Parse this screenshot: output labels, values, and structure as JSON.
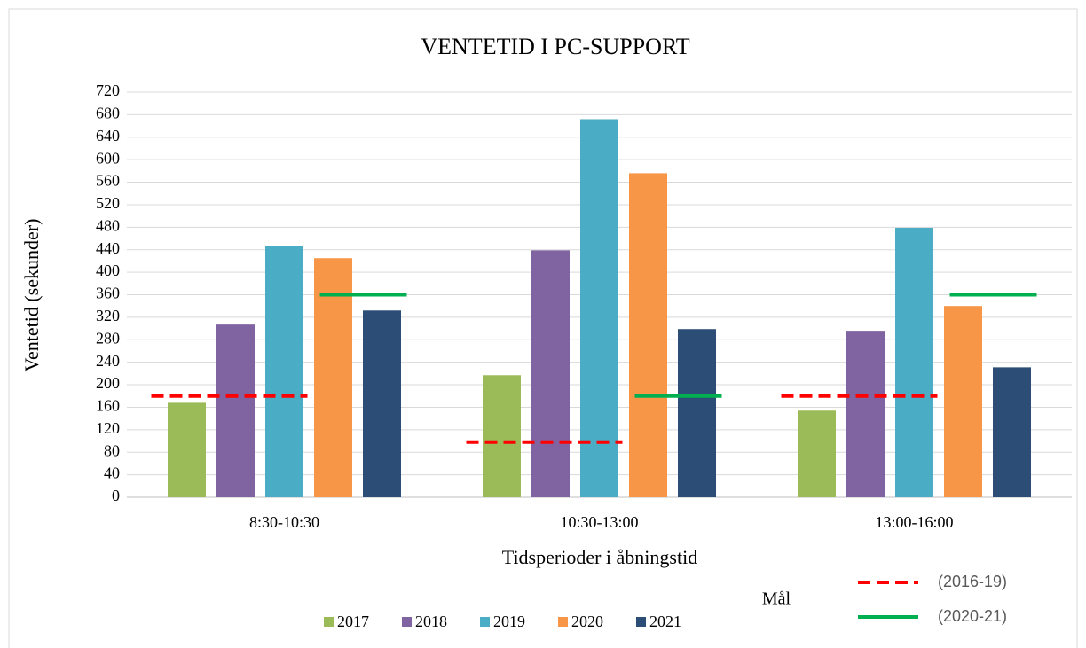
{
  "chart_data": {
    "type": "bar",
    "title": "VENTETID I PC-SUPPORT",
    "y_label": "Ventetid (sekunder)",
    "x_label": "Tidsperioder i åbningstid",
    "categories": [
      "8:30-10:30",
      "10:30-13:00",
      "13:00-16:00"
    ],
    "series": [
      {
        "name": "2017",
        "color": "#9bbb59",
        "values": [
          168,
          217,
          154
        ]
      },
      {
        "name": "2018",
        "color": "#8064a2",
        "values": [
          307,
          439,
          296
        ]
      },
      {
        "name": "2019",
        "color": "#4bacc6",
        "values": [
          447,
          672,
          479
        ]
      },
      {
        "name": "2020",
        "color": "#f79646",
        "values": [
          425,
          576,
          340
        ]
      },
      {
        "name": "2021",
        "color": "#2c4d75",
        "values": [
          332,
          299,
          231
        ]
      }
    ],
    "target_legend_title": "Mål",
    "targets": [
      {
        "name": "(2016-19)",
        "color": "#ff0000",
        "dashed": true,
        "values": [
          180,
          98,
          180
        ]
      },
      {
        "name": "(2020-21)",
        "color": "#00b050",
        "dashed": false,
        "values": [
          360,
          180,
          360
        ]
      }
    ],
    "ylim": [
      0,
      720
    ],
    "yticks": [
      0,
      40,
      80,
      120,
      160,
      200,
      240,
      280,
      320,
      360,
      400,
      440,
      480,
      520,
      560,
      600,
      640,
      680,
      720
    ],
    "grid": true
  }
}
